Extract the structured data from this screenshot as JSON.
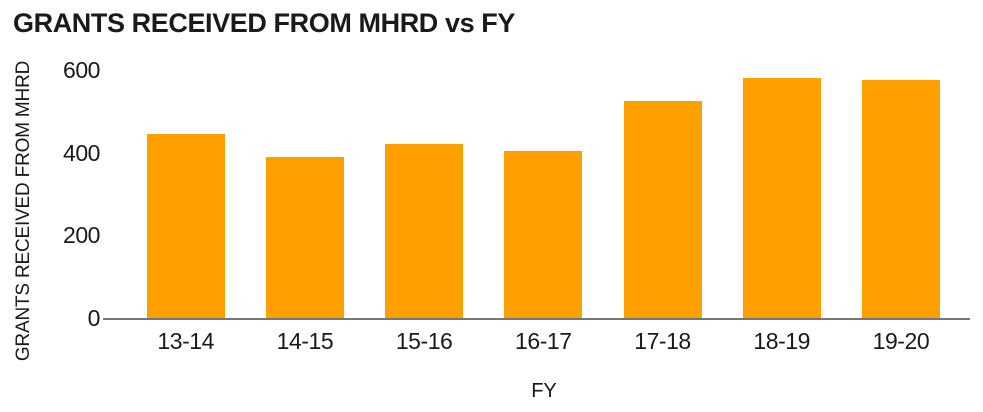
{
  "chart_data": {
    "type": "bar",
    "title": "GRANTS RECEIVED FROM MHRD vs FY",
    "xlabel": "FY",
    "ylabel": "GRANTS RECEIVED FROM MHRD",
    "categories": [
      "13-14",
      "14-15",
      "15-16",
      "16-17",
      "17-18",
      "18-19",
      "19-20"
    ],
    "values": [
      445,
      390,
      420,
      405,
      525,
      580,
      575
    ],
    "ylim": [
      0,
      600
    ],
    "yticks": [
      0,
      200,
      400,
      600
    ],
    "grid": false,
    "legend_position": "none",
    "bar_color": "#FFA000",
    "axis_line_color": "#767676",
    "text_color": "#1A1A1A",
    "background_color": "#FFFFFF"
  }
}
